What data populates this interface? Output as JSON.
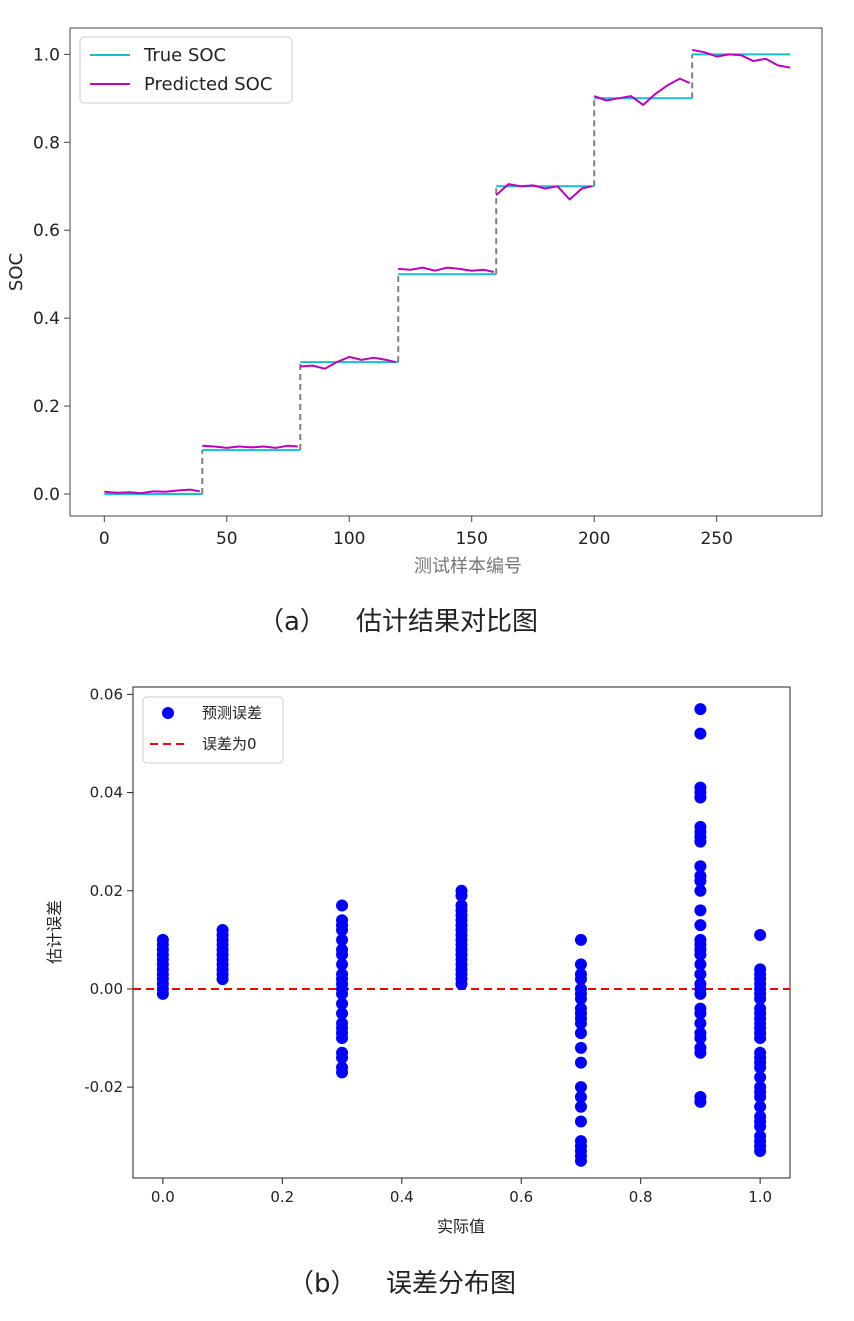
{
  "chart_data": [
    {
      "type": "line",
      "ylabel": "SOC",
      "xlabel": "测试样本编号",
      "caption_tag": "（a）",
      "caption": "估计结果对比图",
      "xlim": [
        -14,
        293
      ],
      "ylim": [
        -0.05,
        1.06
      ],
      "xticks": [
        0,
        50,
        100,
        150,
        200,
        250
      ],
      "yticks": [
        0.0,
        0.2,
        0.4,
        0.6,
        0.8,
        1.0
      ],
      "ytick_labels": [
        "0.0",
        "0.2",
        "0.4",
        "0.6",
        "0.8",
        "1.0"
      ],
      "legend_position": "upper-left",
      "series": [
        {
          "name": "True SOC",
          "color": "#17becf",
          "segments": [
            {
              "x": [
                0,
                40
              ],
              "y": [
                0.0,
                0.0
              ]
            },
            {
              "x": [
                40,
                80
              ],
              "y": [
                0.1,
                0.1
              ]
            },
            {
              "x": [
                80,
                120
              ],
              "y": [
                0.3,
                0.3
              ]
            },
            {
              "x": [
                120,
                160
              ],
              "y": [
                0.5,
                0.5
              ]
            },
            {
              "x": [
                160,
                200
              ],
              "y": [
                0.7,
                0.7
              ]
            },
            {
              "x": [
                200,
                240
              ],
              "y": [
                0.9,
                0.9
              ]
            },
            {
              "x": [
                240,
                280
              ],
              "y": [
                1.0,
                1.0
              ]
            }
          ]
        },
        {
          "name": "Predicted SOC",
          "color": "#bf00bf",
          "segments": [
            {
              "x": [
                0,
                5,
                10,
                15,
                20,
                25,
                30,
                35,
                39
              ],
              "y": [
                0.005,
                0.003,
                0.004,
                0.002,
                0.006,
                0.005,
                0.008,
                0.01,
                0.006
              ]
            },
            {
              "x": [
                40,
                45,
                50,
                55,
                60,
                65,
                70,
                75,
                79
              ],
              "y": [
                0.11,
                0.108,
                0.105,
                0.108,
                0.106,
                0.108,
                0.105,
                0.11,
                0.108
              ]
            },
            {
              "x": [
                80,
                85,
                90,
                95,
                100,
                105,
                110,
                115,
                119
              ],
              "y": [
                0.29,
                0.292,
                0.285,
                0.3,
                0.312,
                0.305,
                0.31,
                0.305,
                0.3
              ]
            },
            {
              "x": [
                120,
                125,
                130,
                135,
                140,
                145,
                150,
                155,
                159
              ],
              "y": [
                0.512,
                0.51,
                0.515,
                0.508,
                0.515,
                0.512,
                0.508,
                0.51,
                0.505
              ]
            },
            {
              "x": [
                160,
                165,
                170,
                175,
                180,
                185,
                190,
                195,
                199
              ],
              "y": [
                0.68,
                0.705,
                0.7,
                0.702,
                0.695,
                0.7,
                0.67,
                0.695,
                0.7
              ]
            },
            {
              "x": [
                200,
                205,
                210,
                215,
                220,
                225,
                230,
                235,
                239
              ],
              "y": [
                0.905,
                0.895,
                0.9,
                0.905,
                0.885,
                0.91,
                0.93,
                0.945,
                0.935
              ]
            },
            {
              "x": [
                240,
                245,
                250,
                255,
                260,
                265,
                270,
                275,
                280
              ],
              "y": [
                1.01,
                1.005,
                0.995,
                1.0,
                0.998,
                0.985,
                0.99,
                0.975,
                0.97
              ]
            }
          ]
        }
      ],
      "transitions": {
        "color": "#808080",
        "x": [
          40,
          80,
          120,
          160,
          200,
          240
        ],
        "y_from": [
          0.0,
          0.1,
          0.3,
          0.5,
          0.7,
          0.9
        ],
        "y_to": [
          0.1,
          0.3,
          0.5,
          0.7,
          0.9,
          1.0
        ]
      }
    },
    {
      "type": "scatter",
      "ylabel": "估计误差",
      "xlabel": "实际值",
      "caption_tag": "（b）",
      "caption": "误差分布图",
      "xlim": [
        -0.05,
        1.05
      ],
      "ylim": [
        -0.0385,
        0.0615
      ],
      "xticks": [
        0.0,
        0.2,
        0.4,
        0.6,
        0.8,
        1.0
      ],
      "xtick_labels": [
        "0.0",
        "0.2",
        "0.4",
        "0.6",
        "0.8",
        "1.0"
      ],
      "yticks": [
        -0.02,
        0.0,
        0.02,
        0.04,
        0.06
      ],
      "ytick_labels": [
        "-0.02",
        "0.00",
        "0.02",
        "0.04",
        "0.06"
      ],
      "legend_position": "upper-left",
      "series": [
        {
          "name": "预测误差",
          "color": "#0000ff",
          "points": {
            "0.0": [
              0.01,
              0.009,
              0.008,
              0.007,
              0.006,
              0.005,
              0.004,
              0.003,
              0.002,
              0.001,
              0.0,
              -0.001
            ],
            "0.1": [
              0.012,
              0.011,
              0.01,
              0.009,
              0.008,
              0.007,
              0.006,
              0.005,
              0.004,
              0.003,
              0.002
            ],
            "0.3": [
              0.017,
              0.014,
              0.013,
              0.012,
              0.01,
              0.008,
              0.007,
              0.005,
              0.003,
              0.002,
              0.001,
              0.0,
              -0.001,
              -0.003,
              -0.005,
              -0.007,
              -0.008,
              -0.009,
              -0.01,
              -0.013,
              -0.014,
              -0.016,
              -0.017
            ],
            "0.5": [
              0.02,
              0.019,
              0.017,
              0.016,
              0.015,
              0.014,
              0.013,
              0.012,
              0.011,
              0.01,
              0.009,
              0.008,
              0.007,
              0.006,
              0.005,
              0.004,
              0.003,
              0.002,
              0.001
            ],
            "0.7": [
              0.01,
              0.005,
              0.003,
              0.002,
              0.0,
              -0.001,
              -0.002,
              -0.004,
              -0.005,
              -0.006,
              -0.007,
              -0.009,
              -0.012,
              -0.015,
              -0.02,
              -0.022,
              -0.024,
              -0.027,
              -0.031,
              -0.032,
              -0.033,
              -0.034,
              -0.035
            ],
            "0.9": [
              0.057,
              0.052,
              0.041,
              0.04,
              0.039,
              0.033,
              0.032,
              0.031,
              0.03,
              0.025,
              0.023,
              0.022,
              0.02,
              0.016,
              0.013,
              0.01,
              0.009,
              0.008,
              0.007,
              0.005,
              0.003,
              0.001,
              0.0,
              -0.001,
              -0.004,
              -0.005,
              -0.007,
              -0.009,
              -0.01,
              -0.012,
              -0.013,
              -0.022,
              -0.023
            ],
            "1.0": [
              0.011,
              0.004,
              0.003,
              0.002,
              0.001,
              0.0,
              -0.001,
              -0.002,
              -0.004,
              -0.005,
              -0.006,
              -0.007,
              -0.008,
              -0.009,
              -0.01,
              -0.013,
              -0.014,
              -0.015,
              -0.016,
              -0.018,
              -0.02,
              -0.021,
              -0.022,
              -0.024,
              -0.026,
              -0.027,
              -0.028,
              -0.03,
              -0.031,
              -0.032,
              -0.033
            ]
          }
        },
        {
          "name": "误差为0",
          "color": "#ff0000",
          "y": 0.0,
          "style": "dashed"
        }
      ]
    }
  ]
}
